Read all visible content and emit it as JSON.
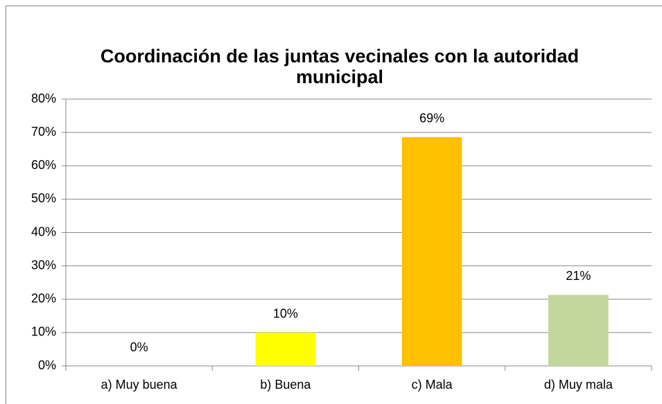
{
  "chart_data": {
    "type": "bar",
    "title": "Coordinación de las juntas vecinales con la autoridad municipal",
    "categories": [
      "a) Muy buena",
      "b) Buena",
      "c) Mala",
      "d) Muy mala"
    ],
    "values": [
      0,
      10,
      68.6,
      21.3
    ],
    "value_labels": [
      "0%",
      "10%",
      "69%",
      "21%"
    ],
    "colors": [
      "#4f81bd",
      "#ffff00",
      "#ffc000",
      "#c3d69b"
    ],
    "ylim": [
      0,
      80
    ],
    "yticks": [
      {
        "value": 0,
        "label": "0%"
      },
      {
        "value": 10,
        "label": "10%"
      },
      {
        "value": 20,
        "label": "20%"
      },
      {
        "value": 30,
        "label": "30%"
      },
      {
        "value": 40,
        "label": "40%"
      },
      {
        "value": 50,
        "label": "50%"
      },
      {
        "value": 60,
        "label": "60%"
      },
      {
        "value": 70,
        "label": "70%"
      },
      {
        "value": 80,
        "label": "80%"
      }
    ],
    "grid": true
  }
}
